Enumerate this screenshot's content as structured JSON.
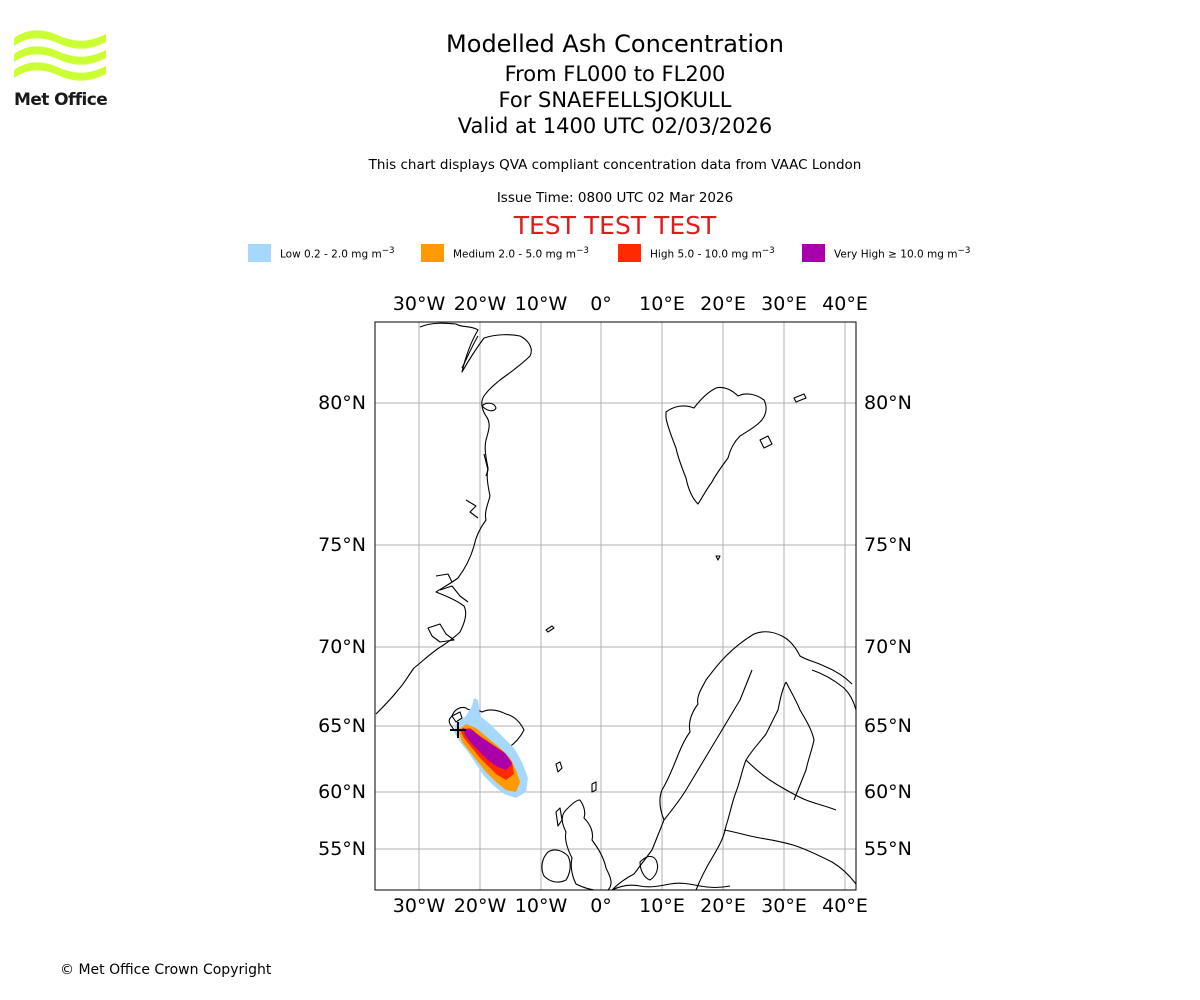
{
  "logo": {
    "text": "Met Office",
    "wave_color": "#ccff33"
  },
  "titles": {
    "main": "Modelled Ash Concentration",
    "levels": "From FL000 to FL200",
    "volcano": "For SNAEFELLSJOKULL",
    "valid": "Valid at 1400 UTC 02/03/2026"
  },
  "subtitle": "This chart displays QVA compliant concentration data from VAAC London",
  "issue_time": "Issue Time: 0800 UTC 02 Mar 2026",
  "test_banner": "TEST TEST TEST",
  "colors": {
    "low": "#a6d8fe",
    "medium": "#ff9a00",
    "high": "#ff2a00",
    "very_high": "#aa00aa",
    "banner": "#e31a1c",
    "grid": "#b0b0b0"
  },
  "legend": [
    {
      "label": "Low 0.2 - 2.0 mg m",
      "unit_sup": "−3",
      "color": "#a6d8fe"
    },
    {
      "label": "Medium 2.0 - 5.0 mg m",
      "unit_sup": "−3",
      "color": "#ff9a00"
    },
    {
      "label": "High 5.0 - 10.0 mg m",
      "unit_sup": "−3",
      "color": "#ff2a00"
    },
    {
      "label": "Very High  ≥  10.0 mg m",
      "unit_sup": "−3",
      "color": "#aa00aa"
    }
  ],
  "map": {
    "lon_labels": [
      "30°W",
      "20°W",
      "10°W",
      "0°",
      "10°E",
      "20°E",
      "30°E",
      "40°E"
    ],
    "lat_labels": [
      "80°N",
      "75°N",
      "70°N",
      "65°N",
      "60°N",
      "55°N"
    ]
  },
  "copyright": "© Met Office Crown Copyright"
}
